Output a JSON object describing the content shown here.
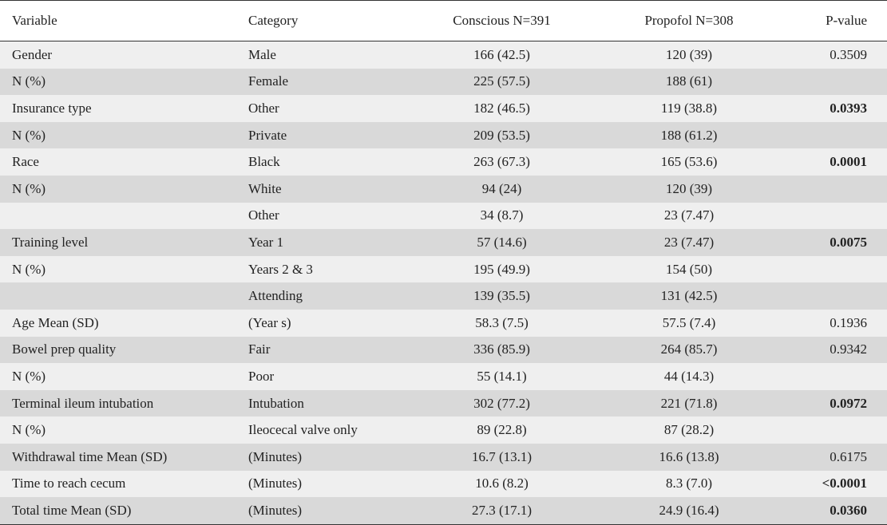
{
  "headers": [
    "Variable",
    "Category",
    "Conscious N=391",
    "Propofol N=308",
    "P-value"
  ],
  "rows": [
    {
      "variable": "Gender",
      "category": "Male",
      "conscious": "166 (42.5)",
      "propofol": "120 (39)",
      "p": "0.3509",
      "p_bold": false
    },
    {
      "variable": "N (%)",
      "category": "Female",
      "conscious": "225 (57.5)",
      "propofol": "188 (61)",
      "p": "",
      "p_bold": false
    },
    {
      "variable": "Insurance type",
      "category": "Other",
      "conscious": "182 (46.5)",
      "propofol": "119 (38.8)",
      "p": "0.0393",
      "p_bold": true
    },
    {
      "variable": "N (%)",
      "category": "Private",
      "conscious": "209 (53.5)",
      "propofol": "188 (61.2)",
      "p": "",
      "p_bold": false
    },
    {
      "variable": "Race",
      "category": "Black",
      "conscious": "263 (67.3)",
      "propofol": "165 (53.6)",
      "p": "0.0001",
      "p_bold": true
    },
    {
      "variable": "N (%)",
      "category": "White",
      "conscious": "94 (24)",
      "propofol": "120 (39)",
      "p": "",
      "p_bold": false
    },
    {
      "variable": "",
      "category": "Other",
      "conscious": "34 (8.7)",
      "propofol": "23 (7.47)",
      "p": "",
      "p_bold": false
    },
    {
      "variable": "Training level",
      "category": "Year 1",
      "conscious": "57 (14.6)",
      "propofol": "23 (7.47)",
      "p": "0.0075",
      "p_bold": true
    },
    {
      "variable": "N (%)",
      "category": "Years 2 & 3",
      "conscious": "195 (49.9)",
      "propofol": "154 (50)",
      "p": "",
      "p_bold": false
    },
    {
      "variable": "",
      "category": "Attending",
      "conscious": "139 (35.5)",
      "propofol": "131 (42.5)",
      "p": "",
      "p_bold": false
    },
    {
      "variable": "Age Mean (SD)",
      "category": "(Year s)",
      "conscious": "58.3 (7.5)",
      "propofol": "57.5 (7.4)",
      "p": "0.1936",
      "p_bold": false
    },
    {
      "variable": "Bowel prep quality",
      "category": "Fair",
      "conscious": "336 (85.9)",
      "propofol": "264 (85.7)",
      "p": "0.9342",
      "p_bold": false
    },
    {
      "variable": "N (%)",
      "category": "Poor",
      "conscious": "55 (14.1)",
      "propofol": "44 (14.3)",
      "p": "",
      "p_bold": false
    },
    {
      "variable": "Terminal ileum intubation",
      "category": "Intubation",
      "conscious": "302 (77.2)",
      "propofol": "221 (71.8)",
      "p": "0.0972",
      "p_bold": true
    },
    {
      "variable": "N (%)",
      "category": "Ileocecal valve only",
      "conscious": "89 (22.8)",
      "propofol": "87 (28.2)",
      "p": "",
      "p_bold": false
    },
    {
      "variable": "Withdrawal time Mean (SD)",
      "category": "(Minutes)",
      "conscious": "16.7 (13.1)",
      "propofol": "16.6 (13.8)",
      "p": "0.6175",
      "p_bold": false
    },
    {
      "variable": "Time to reach cecum",
      "category": "(Minutes)",
      "conscious": "10.6 (8.2)",
      "propofol": "8.3 (7.0)",
      "p": "<0.0001",
      "p_bold": true
    },
    {
      "variable": "Total time Mean (SD)",
      "category": "(Minutes)",
      "conscious": "27.3 (17.1)",
      "propofol": "24.9 (16.4)",
      "p": "0.0360",
      "p_bold": true
    }
  ]
}
